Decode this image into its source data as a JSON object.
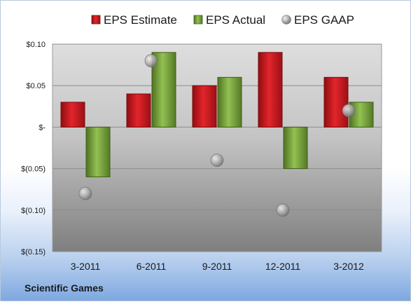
{
  "chart_data": {
    "type": "bar",
    "categories": [
      "3-2011",
      "6-2011",
      "9-2011",
      "12-2011",
      "3-2012"
    ],
    "series": [
      {
        "name": "EPS Estimate",
        "kind": "bar",
        "color": "#c8161d",
        "values": [
          0.03,
          0.04,
          0.05,
          0.09,
          0.06
        ]
      },
      {
        "name": "EPS Actual",
        "kind": "bar",
        "color": "#77a33a",
        "values": [
          -0.06,
          0.09,
          0.06,
          -0.05,
          0.03
        ]
      },
      {
        "name": "EPS GAAP",
        "kind": "marker",
        "color": "#9a9a9a",
        "values": [
          -0.08,
          0.08,
          -0.04,
          -0.1,
          0.02
        ]
      }
    ],
    "ylim": [
      -0.15,
      0.1
    ],
    "yticks": [
      0.1,
      0.05,
      0,
      -0.05,
      -0.1,
      -0.15
    ],
    "ytick_labels": [
      "$0.10",
      "$0.05",
      "$-",
      "$(0.05)",
      "$(0.10)",
      "$(0.15)"
    ],
    "legend_position": "top",
    "grid": true
  },
  "footer": {
    "company": "Scientific Games"
  }
}
